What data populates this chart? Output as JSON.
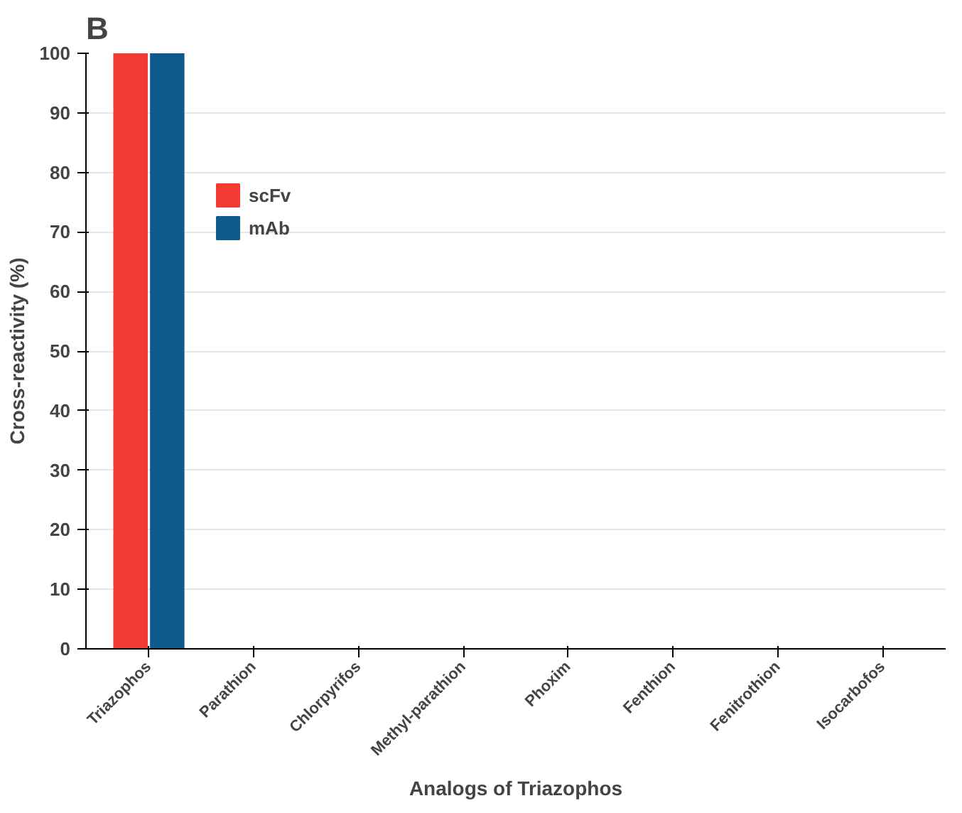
{
  "chart_data": {
    "type": "bar",
    "title": "B",
    "xlabel": "Analogs of Triazophos",
    "ylabel": "Cross-reactivity (%)",
    "categories": [
      "Triazophos",
      "Parathion",
      "Chlorpyrifos",
      "Methyl-parathion",
      "Phoxim",
      "Fenthion",
      "Fenitrothion",
      "Isocarbofos"
    ],
    "series": [
      {
        "name": "scFv",
        "color": "#f03a32",
        "values": [
          100,
          0,
          0,
          0,
          0,
          0,
          0,
          0
        ]
      },
      {
        "name": "mAb",
        "color": "#0d5b8c",
        "values": [
          100,
          0,
          0,
          0,
          0,
          0,
          0,
          0
        ]
      }
    ],
    "ylim": [
      0,
      100
    ],
    "yticks": [
      0,
      10,
      20,
      30,
      40,
      50,
      60,
      70,
      80,
      90,
      100
    ],
    "grid": "y",
    "legend": "top left"
  }
}
